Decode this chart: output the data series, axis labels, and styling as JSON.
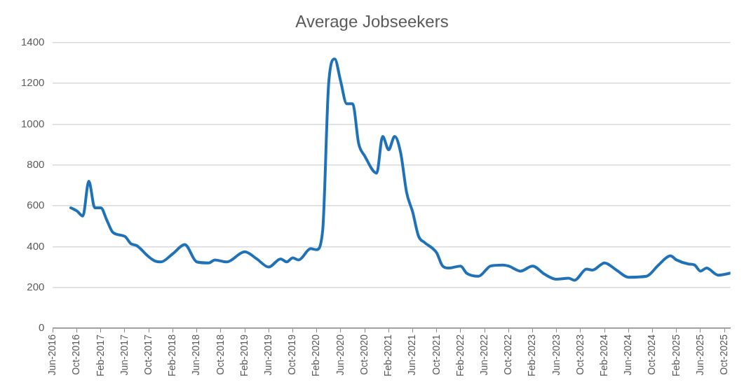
{
  "chart_data": {
    "type": "line",
    "title": "Average Jobseekers",
    "x": [
      "2016-09",
      "2016-10",
      "2016-11",
      "2016-12",
      "2017-01",
      "2017-02",
      "2017-03",
      "2017-04",
      "2017-06",
      "2017-07",
      "2017-08",
      "2017-10",
      "2017-11",
      "2017-12",
      "2018-02",
      "2018-04",
      "2018-06",
      "2018-08",
      "2018-09",
      "2018-11",
      "2019-02",
      "2019-04",
      "2019-06",
      "2019-08",
      "2019-09",
      "2019-10",
      "2019-11",
      "2020-01",
      "2020-02",
      "2020-03",
      "2020-04",
      "2020-05",
      "2020-06",
      "2020-07",
      "2020-08",
      "2020-09",
      "2020-10",
      "2020-12",
      "2021-01",
      "2021-02",
      "2021-03",
      "2021-04",
      "2021-05",
      "2021-06",
      "2021-07",
      "2021-08",
      "2021-10",
      "2021-11",
      "2021-12",
      "2022-02",
      "2022-03",
      "2022-05",
      "2022-07",
      "2022-09",
      "2022-10",
      "2022-12",
      "2023-02",
      "2023-04",
      "2023-06",
      "2023-08",
      "2023-09",
      "2023-11",
      "2023-12",
      "2024-02",
      "2024-04",
      "2024-06",
      "2024-09",
      "2024-11",
      "2025-01",
      "2025-02",
      "2025-04",
      "2025-05",
      "2025-06",
      "2025-07",
      "2025-09",
      "2025-11"
    ],
    "series": [
      {
        "color": "#1f72b8",
        "values": [
          590,
          575,
          550,
          720,
          590,
          590,
          530,
          470,
          450,
          415,
          405,
          350,
          330,
          325,
          365,
          410,
          325,
          320,
          335,
          325,
          375,
          340,
          300,
          340,
          325,
          345,
          335,
          390,
          385,
          480,
          1200,
          1320,
          1210,
          1100,
          1100,
          905,
          845,
          760,
          940,
          875,
          940,
          860,
          665,
          570,
          450,
          420,
          370,
          305,
          295,
          305,
          270,
          255,
          305,
          310,
          305,
          280,
          305,
          265,
          240,
          245,
          235,
          290,
          285,
          320,
          285,
          250,
          255,
          310,
          355,
          335,
          315,
          310,
          280,
          295,
          260,
          270
        ]
      }
    ],
    "xlim": [
      "2016-06",
      "2025-11"
    ],
    "xticks": [
      {
        "value": "2016-06",
        "label": "Jun-2016"
      },
      {
        "value": "2016-10",
        "label": "Oct-2016"
      },
      {
        "value": "2017-02",
        "label": "Feb-2017"
      },
      {
        "value": "2017-06",
        "label": "Jun-2017"
      },
      {
        "value": "2017-10",
        "label": "Oct-2017"
      },
      {
        "value": "2018-02",
        "label": "Feb-2018"
      },
      {
        "value": "2018-06",
        "label": "Jun-2018"
      },
      {
        "value": "2018-10",
        "label": "Oct-2018"
      },
      {
        "value": "2019-02",
        "label": "Feb-2019"
      },
      {
        "value": "2019-06",
        "label": "Jun-2019"
      },
      {
        "value": "2019-10",
        "label": "Oct-2019"
      },
      {
        "value": "2020-02",
        "label": "Feb-2020"
      },
      {
        "value": "2020-06",
        "label": "Jun-2020"
      },
      {
        "value": "2020-10",
        "label": "Oct-2020"
      },
      {
        "value": "2021-02",
        "label": "Feb-2021"
      },
      {
        "value": "2021-06",
        "label": "Jun-2021"
      },
      {
        "value": "2021-10",
        "label": "Oct-2021"
      },
      {
        "value": "2022-02",
        "label": "Feb-2022"
      },
      {
        "value": "2022-06",
        "label": "Jun-2022"
      },
      {
        "value": "2022-10",
        "label": "Oct-2022"
      },
      {
        "value": "2023-02",
        "label": "Feb-2023"
      },
      {
        "value": "2023-06",
        "label": "Jun-2023"
      },
      {
        "value": "2023-10",
        "label": "Oct-2023"
      },
      {
        "value": "2024-02",
        "label": "Feb-2024"
      },
      {
        "value": "2024-06",
        "label": "Jun-2024"
      },
      {
        "value": "2024-10",
        "label": "Oct-2024"
      },
      {
        "value": "2025-02",
        "label": "Feb-2025"
      },
      {
        "value": "2025-06",
        "label": "Jun-2025"
      },
      {
        "value": "2025-10",
        "label": "Oct-2025"
      }
    ],
    "ylim": [
      0,
      1400
    ],
    "yticks": [
      0,
      200,
      400,
      600,
      800,
      1000,
      1200,
      1400
    ],
    "grid": "y",
    "legend": false,
    "marker": "none",
    "line_style": "solid"
  }
}
